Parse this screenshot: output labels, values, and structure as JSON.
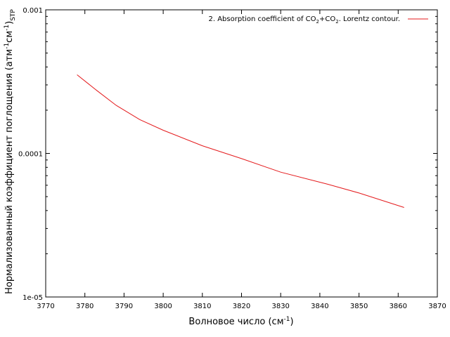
{
  "chart_data": {
    "type": "line",
    "xlabel": {
      "main": "Волновое число (см",
      "sup": "-1",
      "end": ")"
    },
    "ylabel": {
      "main": "Нормализованный коэффициент поглощения (атм",
      "sup1": "-1",
      "mid": "см",
      "sup2": "-1",
      "end": ")",
      "sub": "STP"
    },
    "xlim": [
      3770,
      3870
    ],
    "ylim": [
      1e-05,
      0.001
    ],
    "yscale": "log",
    "x_ticks": [
      3770,
      3780,
      3790,
      3800,
      3810,
      3820,
      3830,
      3840,
      3850,
      3860,
      3870
    ],
    "x_tick_labels": [
      "3770",
      "3780",
      "3790",
      "3800",
      "3810",
      "3820",
      "3830",
      "3840",
      "3850",
      "3860",
      "3870"
    ],
    "y_ticks": [
      1e-05,
      0.0001,
      0.001
    ],
    "y_tick_labels": [
      "1e-05",
      "0.0001",
      "0.001"
    ],
    "grid": false,
    "legend_position": "top-right",
    "series": [
      {
        "name": "2. Absorption coefficient of CO2+CO2. Lorentz contour.",
        "legend": {
          "p1": "2. Absorption coefficient of CO",
          "s1": "2",
          "p2": "+CO",
          "s2": "2",
          "p3": ". Lorentz contour."
        },
        "color": "#e41a1c",
        "x": [
          3778,
          3783,
          3788,
          3794,
          3800,
          3810,
          3820,
          3830,
          3842,
          3850,
          3861.5
        ],
        "y": [
          0.000353,
          0.000275,
          0.000216,
          0.000172,
          0.000145,
          0.000113,
          9.2e-05,
          7.4e-05,
          6.1e-05,
          5.3e-05,
          4.2e-05
        ]
      }
    ]
  }
}
